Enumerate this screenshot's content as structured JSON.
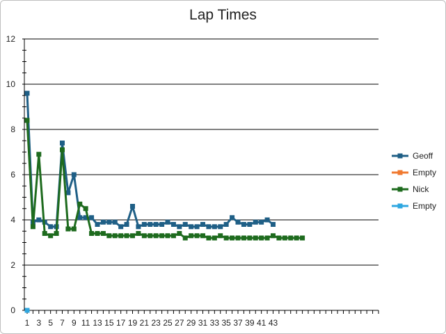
{
  "chart_data": {
    "type": "line",
    "title": "Lap Times",
    "xlabel": "",
    "ylabel": "",
    "ylim": [
      0,
      12
    ],
    "yticks": [
      "0",
      "2",
      "4",
      "6",
      "8",
      "10",
      "12"
    ],
    "xticks": [
      "1",
      "3",
      "5",
      "7",
      "9",
      "11",
      "13",
      "15",
      "17",
      "19",
      "21",
      "23",
      "25",
      "27",
      "29",
      "31",
      "33",
      "35",
      "37",
      "39",
      "41",
      "43"
    ],
    "grid": true,
    "legend": "right",
    "series": [
      {
        "name": "Geoff",
        "color": "#1f5f86",
        "x": [
          1,
          2,
          3,
          4,
          5,
          6,
          7,
          8,
          9,
          10,
          11,
          12,
          13,
          14,
          15,
          16,
          17,
          18,
          19,
          20,
          21,
          22,
          23,
          24,
          25,
          26,
          27,
          28,
          29,
          30,
          31,
          32,
          33,
          34,
          35,
          36,
          37,
          38,
          39,
          40,
          41,
          42,
          43
        ],
        "values": [
          9.6,
          3.9,
          4.0,
          3.9,
          3.7,
          3.7,
          7.4,
          5.2,
          6.0,
          4.1,
          4.1,
          4.1,
          3.8,
          3.9,
          3.9,
          3.9,
          3.7,
          3.8,
          4.6,
          3.7,
          3.8,
          3.8,
          3.8,
          3.8,
          3.9,
          3.8,
          3.7,
          3.8,
          3.7,
          3.7,
          3.8,
          3.7,
          3.7,
          3.7,
          3.8,
          4.1,
          3.9,
          3.8,
          3.8,
          3.9,
          3.9,
          4.0,
          3.8
        ]
      },
      {
        "name": "Empty",
        "color": "#f07a30",
        "x": [],
        "values": []
      },
      {
        "name": "Nick",
        "color": "#1e6b1e",
        "x": [
          1,
          2,
          3,
          4,
          5,
          6,
          7,
          8,
          9,
          10,
          11,
          12,
          13,
          14,
          15,
          16,
          17,
          18,
          19,
          20,
          21,
          22,
          23,
          24,
          25,
          26,
          27,
          28,
          29,
          30,
          31,
          32,
          33,
          34,
          35,
          36,
          37,
          38,
          39,
          40,
          41,
          42,
          43,
          44,
          45,
          46,
          47,
          48
        ],
        "values": [
          8.4,
          3.7,
          6.9,
          3.4,
          3.3,
          3.4,
          7.1,
          3.6,
          3.6,
          4.7,
          4.5,
          3.4,
          3.4,
          3.4,
          3.3,
          3.3,
          3.3,
          3.3,
          3.3,
          3.4,
          3.3,
          3.3,
          3.3,
          3.3,
          3.3,
          3.3,
          3.4,
          3.2,
          3.3,
          3.3,
          3.3,
          3.2,
          3.2,
          3.3,
          3.2,
          3.2,
          3.2,
          3.2,
          3.2,
          3.2,
          3.2,
          3.2,
          3.3,
          3.2,
          3.2,
          3.2,
          3.2,
          3.2
        ]
      },
      {
        "name": "Empty",
        "color": "#2ea7e0",
        "x": [
          1
        ],
        "values": [
          0
        ]
      }
    ]
  }
}
